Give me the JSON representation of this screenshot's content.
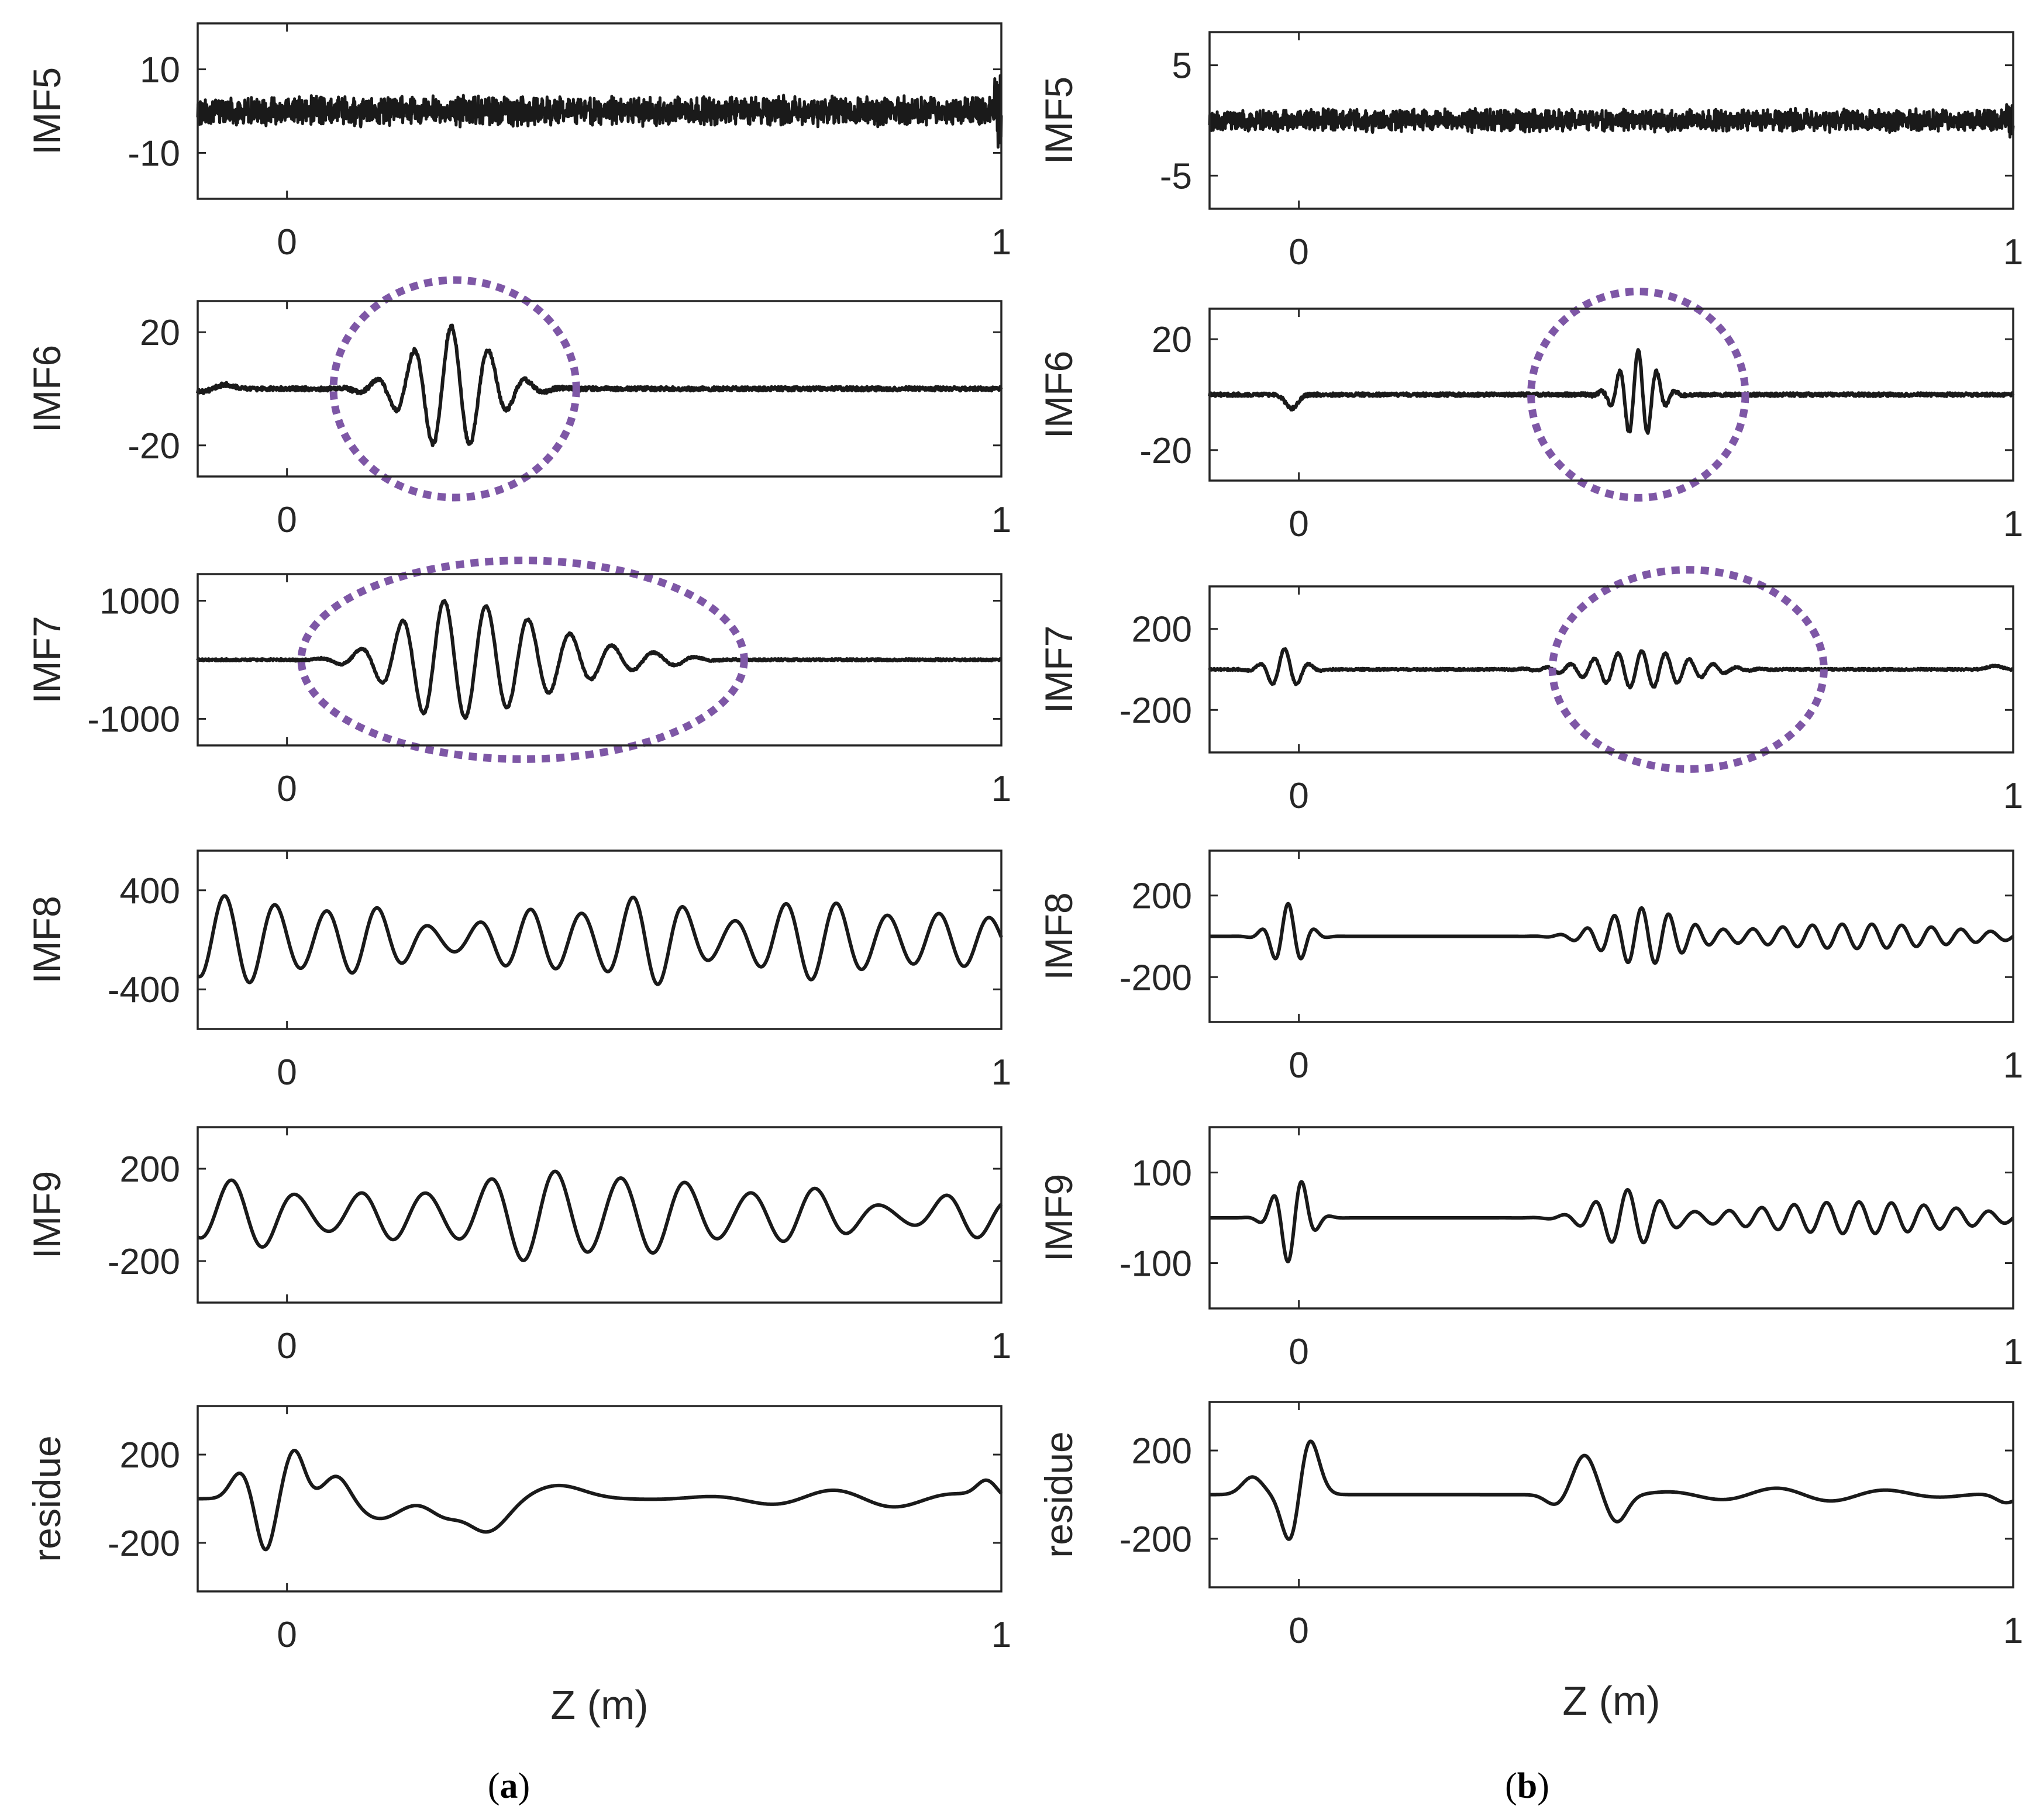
{
  "figure": {
    "panel_labels": [
      {
        "id": "a",
        "text": "a"
      },
      {
        "id": "b",
        "text": "b"
      }
    ]
  },
  "chart_data": [
    {
      "id": "a-imf5",
      "type": "line",
      "ylabel": "IMF5",
      "ylim": [
        -21,
        21
      ],
      "yticks": [
        10,
        -10
      ],
      "ytick_labels": [
        "10",
        "-10"
      ],
      "xlim": [
        -0.125,
        1.0
      ],
      "xticks": [
        0,
        1
      ],
      "xtick_labels": [
        "0",
        "1"
      ],
      "xlabel": "",
      "series": [
        {
          "kind": "noise",
          "amplitude": 2.6,
          "burst_end": 9
        }
      ]
    },
    {
      "id": "a-imf6",
      "type": "line",
      "ylabel": "IMF6",
      "ylim": [
        -31,
        31
      ],
      "yticks": [
        20,
        -20
      ],
      "ytick_labels": [
        "20",
        "-20"
      ],
      "xlim": [
        -0.125,
        1.0
      ],
      "xticks": [
        0,
        1
      ],
      "xtick_labels": [
        "0",
        "1"
      ],
      "xlabel": "",
      "series": [
        {
          "kind": "packet",
          "center": 0.23,
          "width": 0.075,
          "freq": 19,
          "amp": 22,
          "noise": 0.7
        }
      ],
      "highlight": {
        "cx": 0.235,
        "cy": 0,
        "rx": 0.17,
        "ry_frac": 0.62
      }
    },
    {
      "id": "a-imf7",
      "type": "line",
      "ylabel": "IMF7",
      "ylim": [
        -1450,
        1450
      ],
      "yticks": [
        1000,
        -1000
      ],
      "ytick_labels": [
        "1000",
        "-1000"
      ],
      "xlim": [
        -0.125,
        1.0
      ],
      "xticks": [
        0,
        1
      ],
      "xtick_labels": [
        "0",
        "1"
      ],
      "xlabel": "",
      "series": [
        {
          "kind": "packet2",
          "center": 0.22,
          "width": 0.14,
          "tail": 0.55,
          "freq": 17,
          "amp": 1000,
          "noise": 15
        }
      ],
      "highlight": {
        "cx": 0.33,
        "cy": 0,
        "rx": 0.31,
        "ry_frac": 0.58
      }
    },
    {
      "id": "a-imf8",
      "type": "line",
      "ylabel": "IMF8",
      "ylim": [
        -720,
        720
      ],
      "yticks": [
        400,
        -400
      ],
      "ytick_labels": [
        "400",
        "-400"
      ],
      "xlim": [
        -0.125,
        1.0
      ],
      "xticks": [
        0,
        1
      ],
      "xtick_labels": [
        "0",
        "1"
      ],
      "xlabel": "",
      "series": [
        {
          "kind": "multi",
          "amp": 400,
          "freq": 14,
          "seed": 3
        }
      ]
    },
    {
      "id": "a-imf9",
      "type": "line",
      "ylabel": "IMF9",
      "ylim": [
        -380,
        380
      ],
      "yticks": [
        200,
        -200
      ],
      "ytick_labels": [
        "200",
        "-200"
      ],
      "xlim": [
        -0.125,
        1.0
      ],
      "xticks": [
        0,
        1
      ],
      "xtick_labels": [
        "0",
        "1"
      ],
      "xlabel": "",
      "series": [
        {
          "kind": "multi",
          "amp": 200,
          "freq": 11,
          "seed": 7
        }
      ]
    },
    {
      "id": "a-residue",
      "type": "line",
      "ylabel": "residue",
      "ylim": [
        -420,
        420
      ],
      "yticks": [
        200,
        -200
      ],
      "ytick_labels": [
        "200",
        "-200"
      ],
      "xlim": [
        -0.125,
        1.0
      ],
      "xticks": [
        0,
        1
      ],
      "xtick_labels": [
        "0",
        "1"
      ],
      "xlabel": "Z (m)",
      "series": [
        {
          "kind": "residueA"
        }
      ]
    },
    {
      "id": "b-imf5",
      "type": "line",
      "ylabel": "IMF5",
      "ylim": [
        -8,
        8
      ],
      "yticks": [
        5,
        -5
      ],
      "ytick_labels": [
        "5",
        "-5"
      ],
      "xlim": [
        -0.125,
        1.0
      ],
      "xticks": [
        0,
        1
      ],
      "xtick_labels": [
        "0",
        "1"
      ],
      "xlabel": "",
      "series": [
        {
          "kind": "noise",
          "amplitude": 0.75,
          "burst_end": 1.5
        }
      ]
    },
    {
      "id": "b-imf6",
      "type": "line",
      "ylabel": "IMF6",
      "ylim": [
        -31,
        31
      ],
      "yticks": [
        20,
        -20
      ],
      "ytick_labels": [
        "20",
        "-20"
      ],
      "xlim": [
        -0.125,
        1.0
      ],
      "xticks": [
        0,
        1
      ],
      "xtick_labels": [
        "0",
        "1"
      ],
      "xlabel": "",
      "series": [
        {
          "kind": "packet",
          "center": 0.475,
          "width": 0.032,
          "freq": 38,
          "amp": 16,
          "noise": 0.6,
          "early": -0.01
        }
      ],
      "highlight": {
        "cx": 0.475,
        "cy": 0,
        "rx": 0.15,
        "ry_frac": 0.6
      }
    },
    {
      "id": "b-imf7",
      "type": "line",
      "ylabel": "IMF7",
      "ylim": [
        -410,
        410
      ],
      "yticks": [
        200,
        -200
      ],
      "ytick_labels": [
        "200",
        "-200"
      ],
      "xlim": [
        -0.125,
        1.0
      ],
      "xticks": [
        0,
        1
      ],
      "xtick_labels": [
        "0",
        "1"
      ],
      "xlabel": "",
      "series": [
        {
          "kind": "packetB7"
        }
      ],
      "highlight": {
        "cx": 0.545,
        "cy": 0,
        "rx": 0.19,
        "ry_frac": 0.6
      }
    },
    {
      "id": "b-imf8",
      "type": "line",
      "ylabel": "IMF8",
      "ylim": [
        -420,
        420
      ],
      "yticks": [
        200,
        -200
      ],
      "ytick_labels": [
        "200",
        "-200"
      ],
      "xlim": [
        -0.125,
        1.0
      ],
      "xticks": [
        0,
        1
      ],
      "xtick_labels": [
        "0",
        "1"
      ],
      "xlabel": "",
      "series": [
        {
          "kind": "packetB8"
        }
      ]
    },
    {
      "id": "b-imf9",
      "type": "line",
      "ylabel": "IMF9",
      "ylim": [
        -200,
        200
      ],
      "yticks": [
        100,
        -100
      ],
      "ytick_labels": [
        "100",
        "-100"
      ],
      "xlim": [
        -0.125,
        1.0
      ],
      "xticks": [
        0,
        1
      ],
      "xtick_labels": [
        "0",
        "1"
      ],
      "xlabel": "",
      "series": [
        {
          "kind": "packetB9"
        }
      ]
    },
    {
      "id": "b-residue",
      "type": "line",
      "ylabel": "residue",
      "ylim": [
        -420,
        420
      ],
      "yticks": [
        200,
        -200
      ],
      "ytick_labels": [
        "200",
        "-200"
      ],
      "xlim": [
        -0.125,
        1.0
      ],
      "xticks": [
        0,
        1
      ],
      "xtick_labels": [
        "0",
        "1"
      ],
      "xlabel": "Z (m)",
      "series": [
        {
          "kind": "residueB"
        }
      ]
    }
  ]
}
